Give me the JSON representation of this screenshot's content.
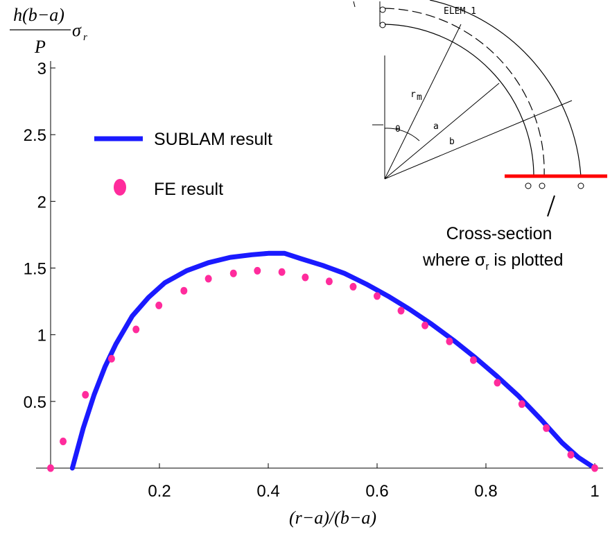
{
  "chart_data": {
    "type": "line",
    "title": "",
    "xlabel": "(r−a)/(b−a)",
    "ylabel": {
      "numerator": "h(b−a)",
      "denominator": "P",
      "symbol": "σ",
      "subscript": "r"
    },
    "xlim": [
      0,
      1
    ],
    "ylim": [
      0,
      3
    ],
    "xticks": [
      "0.2",
      "0.4",
      "0.6",
      "0.8",
      "1"
    ],
    "yticks": [
      "0.5",
      "1",
      "1.5",
      "2",
      "2.5",
      "3"
    ],
    "legend_position": "top-left",
    "series": [
      {
        "name": "SUBLAM result",
        "style": "line",
        "color": "#1a1aff",
        "x": [
          0.04,
          0.06,
          0.08,
          0.1,
          0.12,
          0.15,
          0.18,
          0.21,
          0.25,
          0.29,
          0.33,
          0.37,
          0.4,
          0.43,
          0.46,
          0.5,
          0.54,
          0.58,
          0.62,
          0.66,
          0.7,
          0.74,
          0.78,
          0.82,
          0.86,
          0.9,
          0.94,
          0.97,
          1.0
        ],
        "y": [
          0.0,
          0.3,
          0.55,
          0.76,
          0.93,
          1.14,
          1.28,
          1.39,
          1.48,
          1.54,
          1.58,
          1.6,
          1.61,
          1.61,
          1.57,
          1.52,
          1.46,
          1.38,
          1.29,
          1.19,
          1.08,
          0.96,
          0.83,
          0.69,
          0.54,
          0.37,
          0.19,
          0.08,
          0.0
        ]
      },
      {
        "name": "FE result",
        "style": "markers",
        "color": "#ff2b9c",
        "x": [
          0.0,
          0.023,
          0.064,
          0.112,
          0.157,
          0.199,
          0.245,
          0.29,
          0.336,
          0.38,
          0.425,
          0.468,
          0.512,
          0.556,
          0.6,
          0.644,
          0.688,
          0.733,
          0.777,
          0.821,
          0.866,
          0.911,
          0.956,
          1.0
        ],
        "y": [
          0.0,
          0.2,
          0.55,
          0.82,
          1.04,
          1.22,
          1.33,
          1.42,
          1.46,
          1.48,
          1.47,
          1.43,
          1.4,
          1.36,
          1.29,
          1.18,
          1.07,
          0.95,
          0.81,
          0.64,
          0.48,
          0.3,
          0.1,
          0.0
        ]
      }
    ]
  },
  "inset": {
    "elem_label": "ELEM 1",
    "labels": [
      "θ",
      "a",
      "b",
      "r"
    ],
    "r_subscript": "m",
    "section_line_color": "#ff0000"
  },
  "annotation": {
    "line1": "Cross-section",
    "line2_prefix": "where ",
    "symbol": "σ",
    "subscript": "r",
    "line2_suffix": " is plotted"
  }
}
